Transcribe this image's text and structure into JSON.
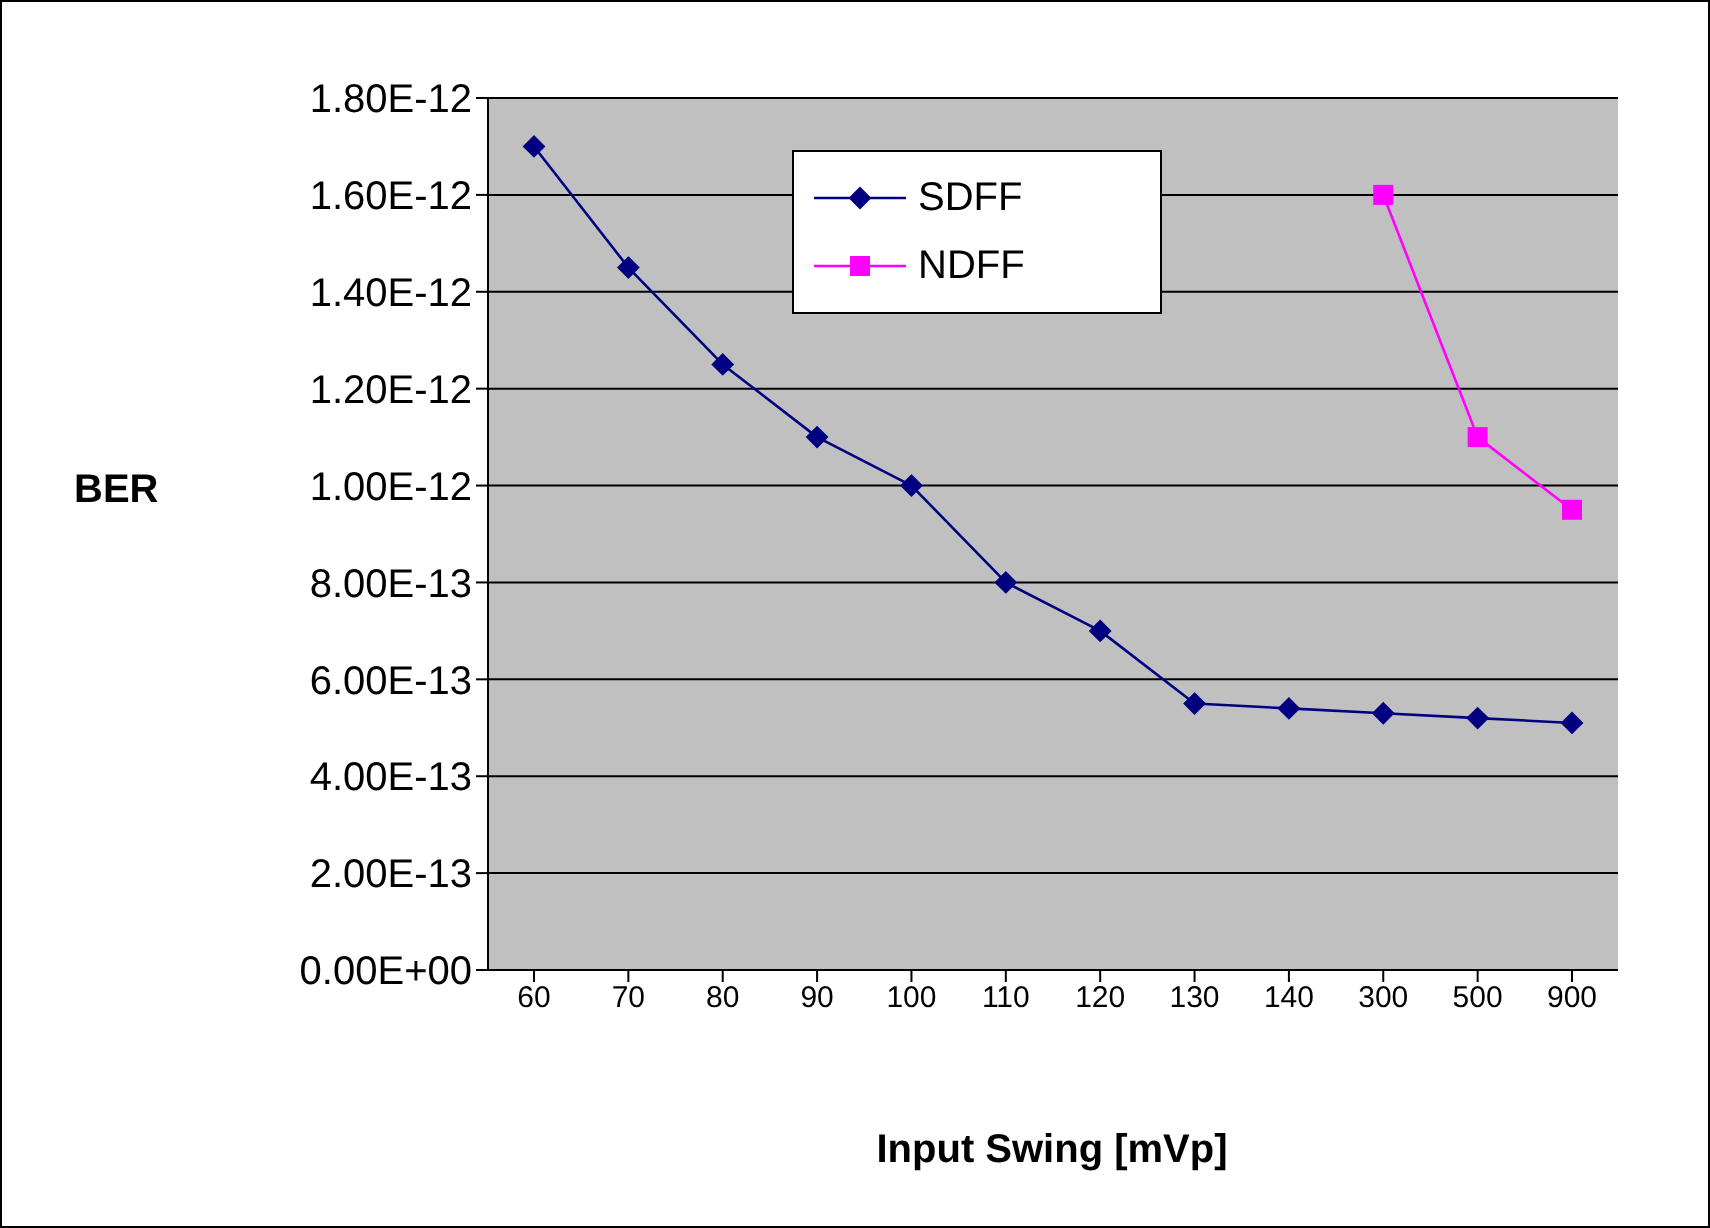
{
  "chart_data": {
    "type": "line",
    "xlabel": "Input Swing [mVp]",
    "ylabel": "BER",
    "categories": [
      "60",
      "70",
      "80",
      "90",
      "100",
      "110",
      "120",
      "130",
      "140",
      "300",
      "500",
      "900"
    ],
    "series": [
      {
        "name": "SDFF",
        "color": "#000080",
        "marker": "diamond",
        "values": [
          1.7e-12,
          1.45e-12,
          1.25e-12,
          1.1e-12,
          1e-12,
          8e-13,
          7e-13,
          5.5e-13,
          5.4e-13,
          5.3e-13,
          5.2e-13,
          5.1e-13
        ]
      },
      {
        "name": "NDFF",
        "color": "#ff00ff",
        "marker": "square",
        "values": [
          null,
          null,
          null,
          null,
          null,
          null,
          null,
          null,
          null,
          1.6e-12,
          1.1e-12,
          9.5e-13
        ]
      }
    ],
    "ylim": [
      0,
      1.8e-12
    ],
    "yticks": [
      {
        "value": 0,
        "label": "0.00E+00"
      },
      {
        "value": 2e-13,
        "label": "2.00E-13"
      },
      {
        "value": 4e-13,
        "label": "4.00E-13"
      },
      {
        "value": 6e-13,
        "label": "6.00E-13"
      },
      {
        "value": 8e-13,
        "label": "8.00E-13"
      },
      {
        "value": 1e-12,
        "label": "1.00E-12"
      },
      {
        "value": 1.2e-12,
        "label": "1.20E-12"
      },
      {
        "value": 1.4e-12,
        "label": "1.40E-12"
      },
      {
        "value": 1.6e-12,
        "label": "1.60E-12"
      },
      {
        "value": 1.8e-12,
        "label": "1.80E-12"
      }
    ],
    "grid": "y",
    "legend": "top"
  }
}
